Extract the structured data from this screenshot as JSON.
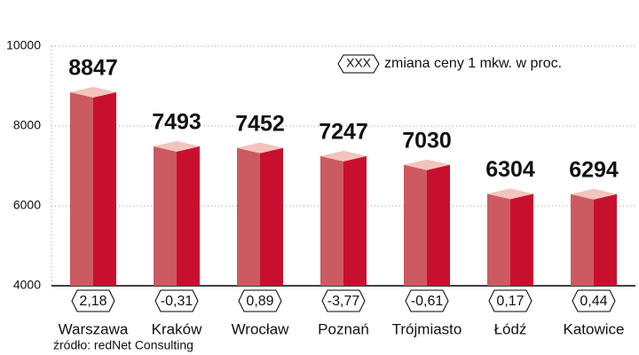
{
  "chart_data": {
    "type": "bar3d",
    "categories": [
      "Warszawa",
      "Kraków",
      "Wrocław",
      "Poznań",
      "Trójmiasto",
      "Łódź",
      "Katowice"
    ],
    "values": [
      8847,
      7493,
      7452,
      7247,
      7030,
      6304,
      6294
    ],
    "colors": {
      "left": "#cc5a61",
      "right": "#c8102e",
      "top": "#f2c4bb"
    },
    "change": {
      "name": "zmiana ceny 1 mkw. w proc.",
      "symbol": "XXX",
      "values": [
        2.18,
        -0.31,
        0.89,
        -3.77,
        -0.61,
        0.17,
        0.44
      ],
      "value_labels": [
        "2,18",
        "-0,31",
        "0,89",
        "-3,77",
        "-0,61",
        "0,17",
        "0,44"
      ]
    },
    "ylim": [
      4000,
      10000
    ],
    "yticks": [
      4000,
      6000,
      8000,
      10000
    ],
    "grid": true,
    "source": "źródło: redNet Consulting"
  }
}
